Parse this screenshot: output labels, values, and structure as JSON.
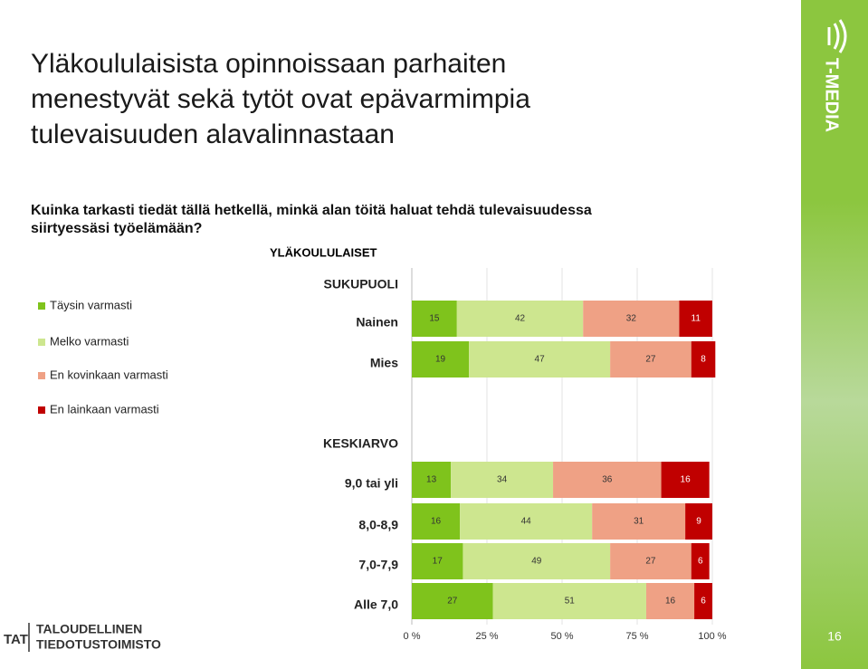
{
  "slide": {
    "title_lines": [
      "Yläkoululaisista opinnoissaan parhaiten",
      "menestyvät sekä tytöt ovat epävarmimpia",
      "tulevaisuuden alavalinnastaan"
    ],
    "question_lines": [
      "Kuinka tarkasti tiedät tällä hetkellä, minkä alan töitä haluat tehdä tulevaisuudessa",
      "siirtyessäsi työelämään?"
    ],
    "brand": "T-MEDIA",
    "footer_logo_short": "TAT",
    "footer_logo_lines": [
      "TALOUDELLINEN",
      "TIEDOTUSTOIMISTO"
    ],
    "page_number": "16"
  },
  "chart_data": {
    "type": "stacked-barh",
    "title": "YLÄKOULULAISET",
    "group_labels": [
      "SUKUPUOLI",
      "KESKIARVO"
    ],
    "categories": [
      "Nainen",
      "Mies",
      "9,0 tai yli",
      "8,0-8,9",
      "7,0-7,9",
      "Alle 7,0"
    ],
    "series": [
      {
        "name": "Täysin varmasti",
        "color": "#7fc31c",
        "values": [
          15,
          19,
          13,
          16,
          17,
          27
        ]
      },
      {
        "name": "Melko varmasti",
        "color": "#cde68f",
        "values": [
          42,
          47,
          34,
          44,
          49,
          51
        ]
      },
      {
        "name": "En kovinkaan varmasti",
        "color": "#efa185",
        "values": [
          32,
          27,
          36,
          31,
          27,
          16
        ]
      },
      {
        "name": "En lainkaan varmasti",
        "color": "#c00000",
        "values": [
          11,
          8,
          16,
          9,
          6,
          6
        ]
      }
    ],
    "xlim": [
      0,
      100
    ],
    "xticks": [
      {
        "value": 0,
        "label": "0 %"
      },
      {
        "value": 25,
        "label": "25 %"
      },
      {
        "value": 50,
        "label": "50 %"
      },
      {
        "value": 75,
        "label": "75 %"
      },
      {
        "value": 100,
        "label": "100 %"
      }
    ],
    "grid": true
  }
}
